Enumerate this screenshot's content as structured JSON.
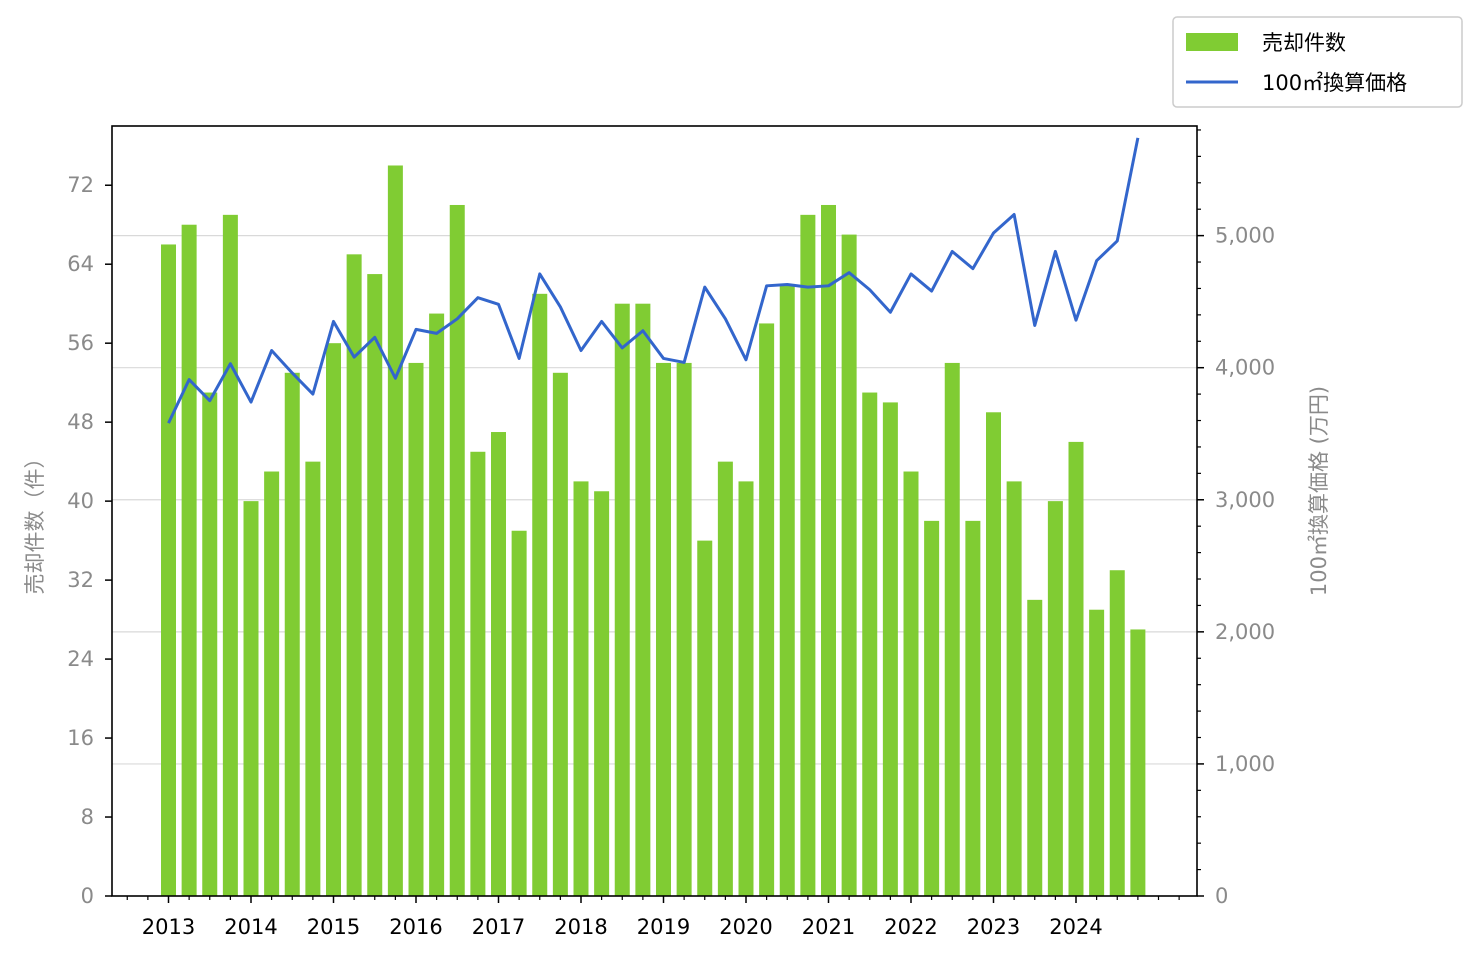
{
  "chart_data": {
    "type": "bar+line",
    "x_tick_labels": [
      "2013",
      "2014",
      "2015",
      "2016",
      "2017",
      "2018",
      "2019",
      "2020",
      "2021",
      "2022",
      "2023",
      "2024"
    ],
    "x": [
      "2013-01",
      "2013-04",
      "2013-07",
      "2013-10",
      "2014-01",
      "2014-04",
      "2014-07",
      "2014-10",
      "2015-01",
      "2015-04",
      "2015-07",
      "2015-10",
      "2016-01",
      "2016-04",
      "2016-07",
      "2016-10",
      "2017-01",
      "2017-04",
      "2017-07",
      "2017-10",
      "2018-01",
      "2018-04",
      "2018-07",
      "2018-10",
      "2019-01",
      "2019-04",
      "2019-07",
      "2019-10",
      "2020-01",
      "2020-04",
      "2020-07",
      "2020-10",
      "2021-01",
      "2021-04",
      "2021-07",
      "2021-10",
      "2022-01",
      "2022-04",
      "2022-07",
      "2022-10",
      "2023-01",
      "2023-04",
      "2023-07",
      "2023-10",
      "2024-01",
      "2024-04",
      "2024-07",
      "2024-10"
    ],
    "series": [
      {
        "name": "売却件数",
        "type": "bar",
        "axis": "left",
        "color": "#80cc33",
        "values": [
          66,
          68,
          51,
          69,
          40,
          43,
          53,
          44,
          56,
          65,
          63,
          74,
          54,
          59,
          70,
          45,
          47,
          37,
          61,
          53,
          42,
          41,
          60,
          60,
          54,
          54,
          36,
          44,
          42,
          58,
          62,
          69,
          70,
          67,
          51,
          50,
          43,
          38,
          54,
          38,
          49,
          42,
          30,
          40,
          46,
          29,
          33,
          27
        ]
      },
      {
        "name": "100㎡換算価格",
        "type": "line",
        "axis": "right",
        "color": "#3366cc",
        "values": [
          3580,
          3910,
          3750,
          4030,
          3740,
          4130,
          3960,
          3800,
          4350,
          4080,
          4230,
          3920,
          4290,
          4260,
          4370,
          4530,
          4480,
          4070,
          4710,
          4460,
          4130,
          4350,
          4150,
          4280,
          4070,
          4040,
          4610,
          4370,
          4060,
          4620,
          4630,
          4610,
          4620,
          4720,
          4590,
          4420,
          4710,
          4580,
          4880,
          4750,
          5020,
          5160,
          4320,
          4880,
          4360,
          4810,
          4960,
          5740
        ]
      }
    ],
    "y_left": {
      "label": "売却件数（件）",
      "range": [
        0,
        78
      ],
      "ticks": [
        "0",
        "8",
        "16",
        "24",
        "32",
        "40",
        "48",
        "56",
        "64",
        "72"
      ],
      "tick_values": [
        0,
        8,
        16,
        24,
        32,
        40,
        48,
        56,
        64,
        72
      ]
    },
    "y_right": {
      "label": "100㎡換算価格 (万円)",
      "range": [
        0,
        5830
      ],
      "ticks": [
        "0",
        "1,000",
        "2,000",
        "3,000",
        "4,000",
        "5,000"
      ],
      "tick_values": [
        0,
        1000,
        2000,
        3000,
        4000,
        5000
      ]
    },
    "grid": "horizontal (right axis)",
    "legend_position": "top-right, outside"
  }
}
